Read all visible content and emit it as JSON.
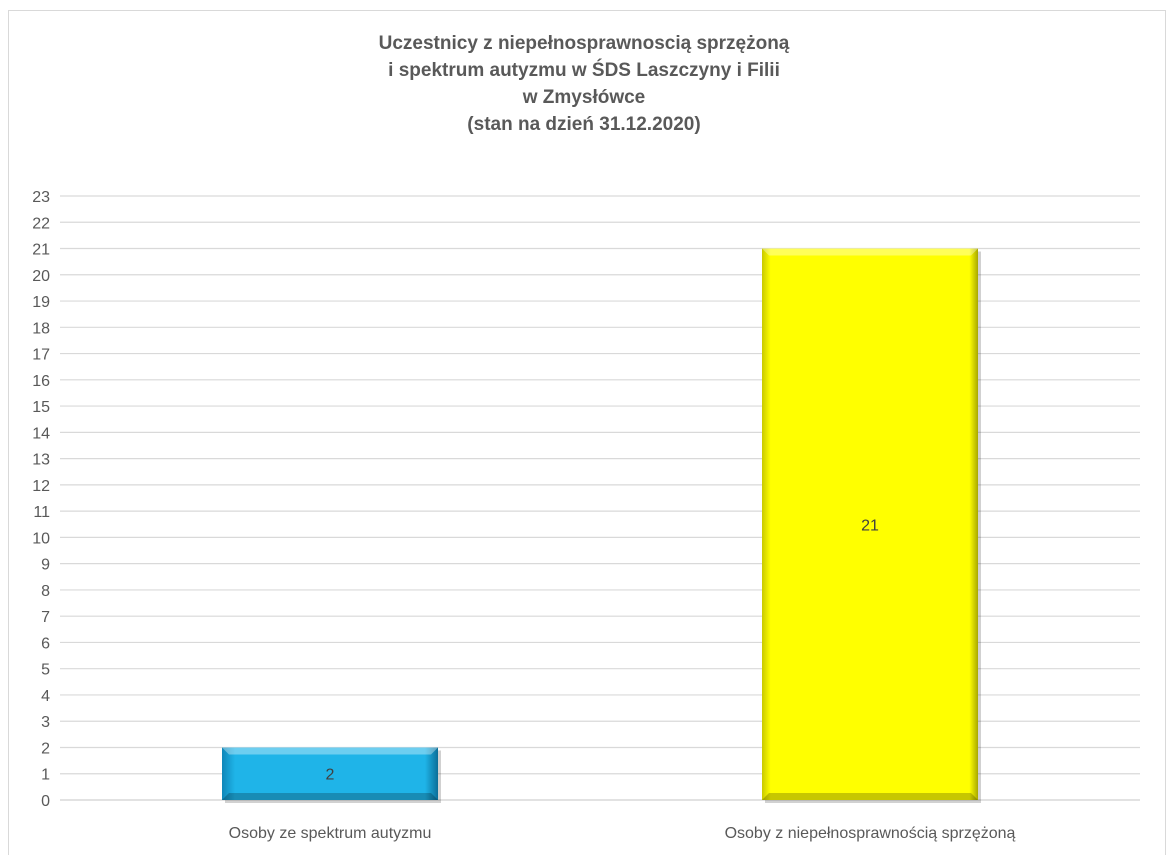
{
  "chart_data": {
    "type": "bar",
    "title": "Uczestnicy z niepełnosprawnoscią sprzężoną i spektrum autyzmu w ŚDS Laszczyny i Filii w Zmysłówce (stan na dzień 31.12.2020)",
    "title_lines": [
      "Uczestnicy z niepełnosprawnoscią sprzężoną",
      "i spektrum autyzmu w ŚDS Laszczyny i Filii",
      "w Zmysłówce",
      "(stan na dzień 31.12.2020)"
    ],
    "categories": [
      "Osoby ze spektrum autyzmu",
      "Osoby z niepełnosprawnością sprzężoną"
    ],
    "values": [
      2,
      21
    ],
    "data_labels": [
      "2",
      "21"
    ],
    "colors": [
      "#1fb4e8",
      "#ffff00"
    ],
    "ylim": [
      0,
      23
    ],
    "ytick_step": 1,
    "grid": true,
    "legend": "none",
    "xlabel": "",
    "ylabel": ""
  }
}
